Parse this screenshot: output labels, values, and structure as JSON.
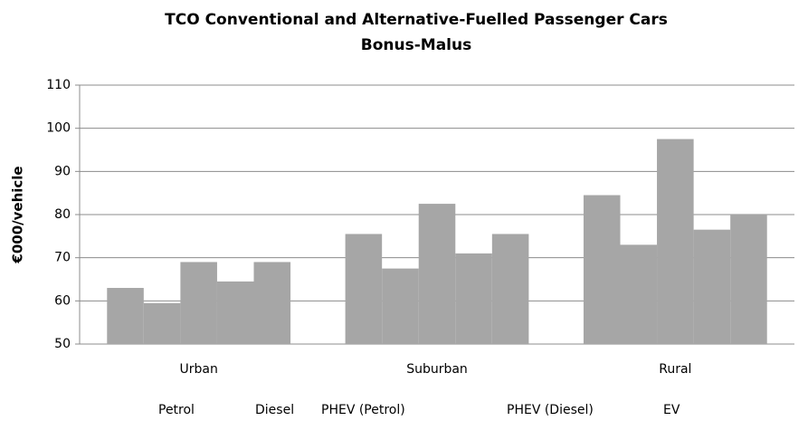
{
  "chart_data": {
    "type": "bar",
    "title": [
      "TCO  Conventional and Alternative-Fuelled Passenger Cars",
      "Bonus-Malus"
    ],
    "y_label": "€000/vehicle",
    "categories": [
      "Urban",
      "Suburban",
      "Rural"
    ],
    "series": [
      {
        "name": "Petrol",
        "color": "#a6a6a6",
        "values": [
          63,
          75.5,
          84.5
        ]
      },
      {
        "name": "Diesel",
        "color": "#a6a6a6",
        "values": [
          59.5,
          67.5,
          73
        ]
      },
      {
        "name": "PHEV (Petrol)",
        "color": "#a6a6a6",
        "values": [
          69,
          82.5,
          97.5
        ]
      },
      {
        "name": "PHEV (Diesel)",
        "color": "#a6a6a6",
        "values": [
          64.5,
          71,
          76.5
        ]
      },
      {
        "name": "EV",
        "color": "#a6a6a6",
        "values": [
          69,
          75.5,
          80
        ]
      }
    ],
    "ylim": [
      50,
      110
    ],
    "yticks": [
      50,
      60,
      70,
      80,
      90,
      100,
      110
    ],
    "grid": true,
    "legend": "bottom"
  }
}
